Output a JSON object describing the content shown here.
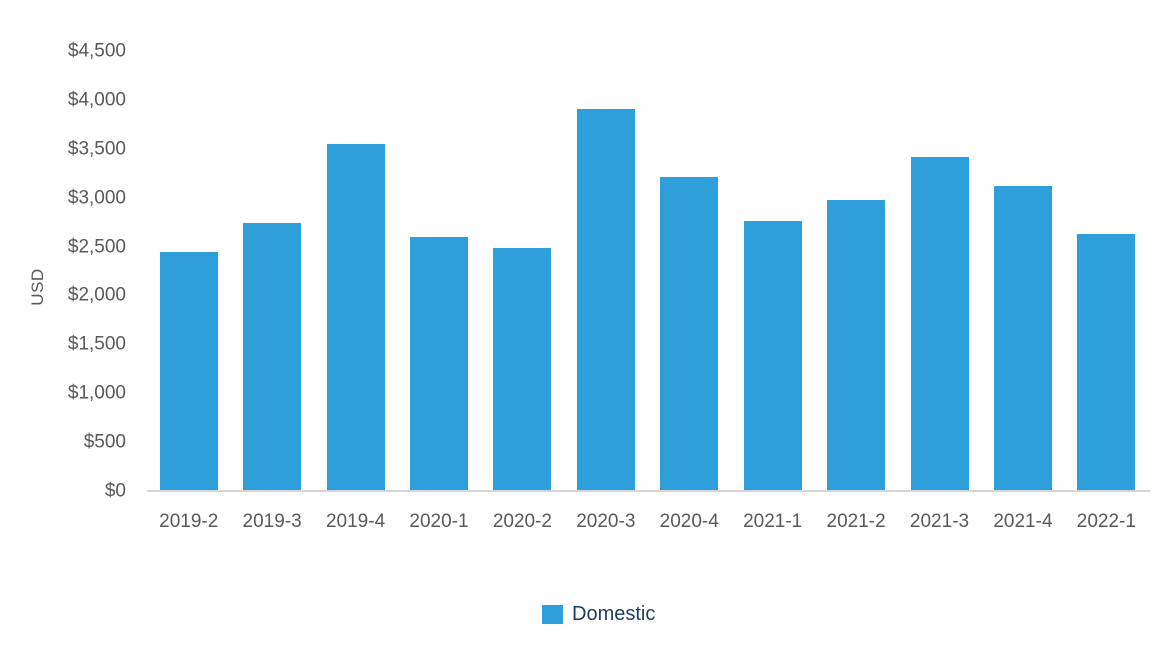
{
  "colors": {
    "bar": "#2E9FDA",
    "axis_text": "#595959",
    "axis_line": "#D6D6D6",
    "legend_text": "#1D3D5F",
    "background": "#FFFFFF"
  },
  "chart_data": {
    "type": "bar",
    "title": "",
    "xlabel": "",
    "ylabel": "USD",
    "categories": [
      "2019-2",
      "2019-3",
      "2019-4",
      "2020-1",
      "2020-2",
      "2020-3",
      "2020-4",
      "2021-1",
      "2021-2",
      "2021-3",
      "2021-4",
      "2022-1"
    ],
    "series": [
      {
        "name": "Domestic",
        "color": "#2E9FDA",
        "values": [
          2450,
          2750,
          3560,
          2610,
          2500,
          3920,
          3220,
          2770,
          2990,
          3430,
          3130,
          2640
        ]
      }
    ],
    "ylim": [
      0,
      4500
    ],
    "ytick_step": 500,
    "y_ticks": [
      {
        "value": 0,
        "label": "$0"
      },
      {
        "value": 500,
        "label": "$500"
      },
      {
        "value": 1000,
        "label": "$1,000"
      },
      {
        "value": 1500,
        "label": "$1,500"
      },
      {
        "value": 2000,
        "label": "$2,000"
      },
      {
        "value": 2500,
        "label": "$2,500"
      },
      {
        "value": 3000,
        "label": "$3,000"
      },
      {
        "value": 3500,
        "label": "$3,500"
      },
      {
        "value": 4000,
        "label": "$4,000"
      },
      {
        "value": 4500,
        "label": "$4,500"
      }
    ],
    "grid": false,
    "legend_position": "bottom"
  },
  "legend": {
    "items": [
      {
        "label": "Domestic",
        "color": "#2E9FDA"
      }
    ]
  }
}
